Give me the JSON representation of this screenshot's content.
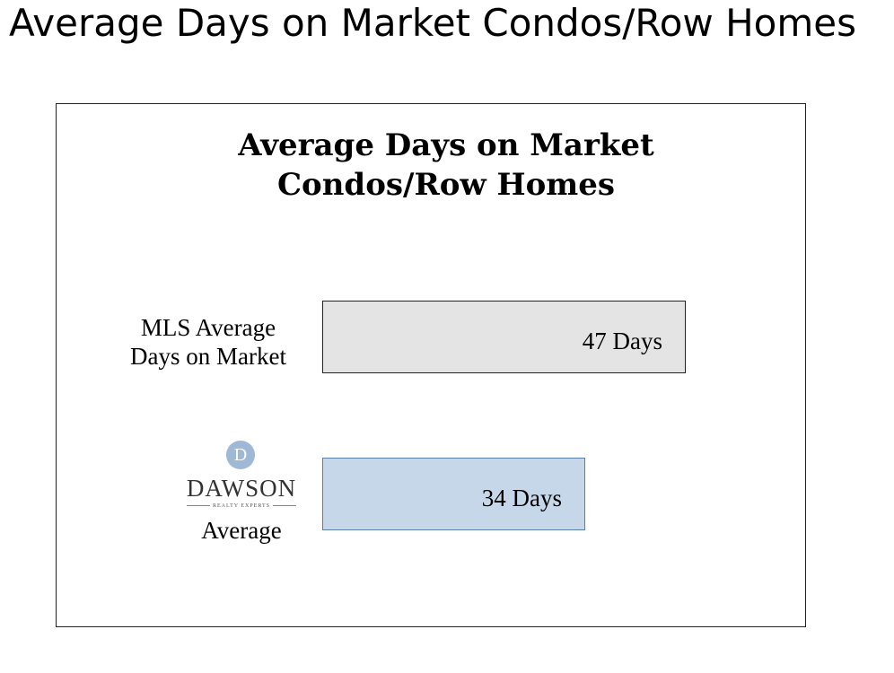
{
  "page": {
    "title": "Average Days on Market Condos/Row Homes"
  },
  "chart_data": {
    "type": "bar",
    "orientation": "horizontal",
    "title_lines": [
      "Average Days on Market",
      "Condos/Row Homes"
    ],
    "categories": [
      "MLS Average Days on Market",
      "DAWSON Average"
    ],
    "category_label_lines": [
      [
        "MLS Average",
        "Days on Market"
      ],
      [
        "Average"
      ]
    ],
    "values": [
      47,
      34
    ],
    "data_labels": [
      "47 Days",
      "34 Days"
    ],
    "xlim": [
      0,
      47
    ],
    "grid": false,
    "legend": "none",
    "bar_colors": [
      "#e4e4e4",
      "#c6d7ea"
    ],
    "bar_border_colors": [
      "#222222",
      "#5a7fa8"
    ]
  },
  "logo": {
    "monogram": "D",
    "name": "DAWSON",
    "tagline": "REALTY EXPERTS",
    "circle_color": "#9fb8d6"
  }
}
